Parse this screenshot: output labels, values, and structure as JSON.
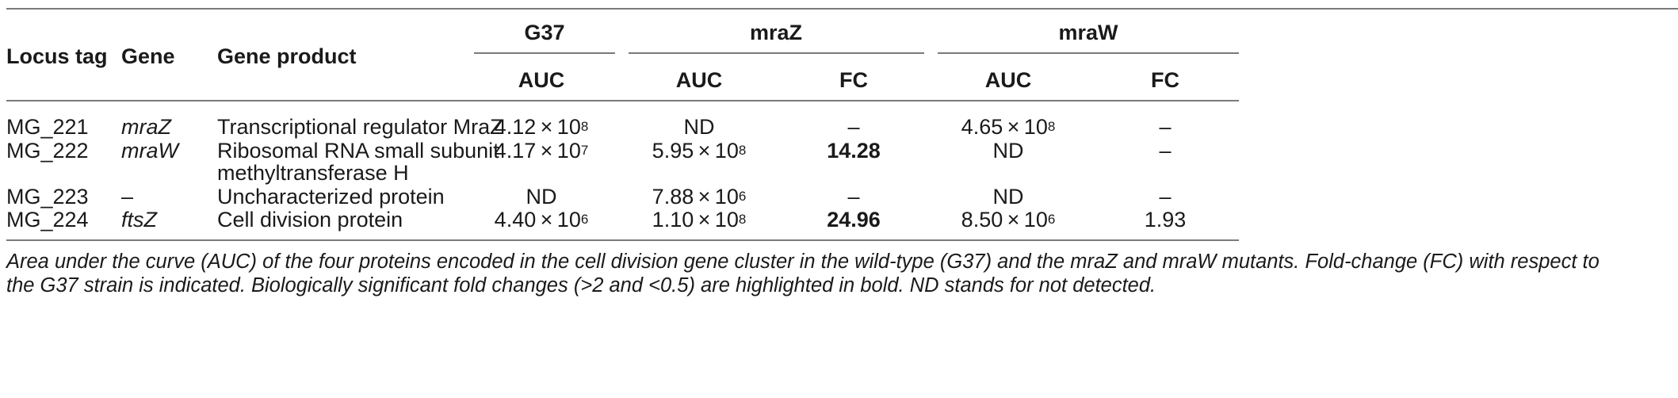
{
  "table": {
    "header": {
      "locus_tag": "Locus tag",
      "gene": "Gene",
      "gene_product": "Gene product",
      "groups": [
        "G37",
        "mraZ",
        "mraW"
      ],
      "sub": {
        "auc": "AUC",
        "fc": "FC"
      }
    },
    "rows": [
      {
        "locus": "MG_221",
        "gene": "mraZ",
        "product": [
          "Transcriptional regulator MraZ"
        ],
        "g37_auc": {
          "m": "4.12 × 10",
          "e": "8"
        },
        "mraz_auc": {
          "m": "ND",
          "e": ""
        },
        "mraz_fc": "–",
        "mraw_auc": {
          "m": "4.65 × 10",
          "e": "8"
        },
        "mraw_fc": "–"
      },
      {
        "locus": "MG_222",
        "gene": "mraW",
        "product": [
          "Ribosomal RNA small subunit",
          "methyltransferase H"
        ],
        "g37_auc": {
          "m": "4.17 × 10",
          "e": "7"
        },
        "mraz_auc": {
          "m": "5.95 × 10",
          "e": "8"
        },
        "mraz_fc": "14.28",
        "mraw_auc": {
          "m": "ND",
          "e": ""
        },
        "mraw_fc": "–"
      },
      {
        "locus": "MG_223",
        "gene": "–",
        "product": [
          "Uncharacterized protein"
        ],
        "g37_auc": {
          "m": "ND",
          "e": ""
        },
        "mraz_auc": {
          "m": "7.88 × 10",
          "e": "6"
        },
        "mraz_fc": "–",
        "mraw_auc": {
          "m": "ND",
          "e": ""
        },
        "mraw_fc": "–"
      },
      {
        "locus": "MG_224",
        "gene": "ftsZ",
        "product": [
          "Cell division protein"
        ],
        "g37_auc": {
          "m": "4.40 × 10",
          "e": "6"
        },
        "mraz_auc": {
          "m": "1.10 × 10",
          "e": "8"
        },
        "mraz_fc": "24.96",
        "mraw_auc": {
          "m": "8.50 × 10",
          "e": "6"
        },
        "mraw_fc": "1.93"
      }
    ]
  },
  "caption": [
    "Area under the curve (AUC) of the four proteins encoded in the cell division gene cluster in the wild-type (G37) and the mraZ and mraW mutants. Fold-change (FC) with respect to",
    "the G37 strain is indicated. Biologically significant fold changes (>2 and <0.5) are highlighted in bold. ND stands for not detected."
  ]
}
